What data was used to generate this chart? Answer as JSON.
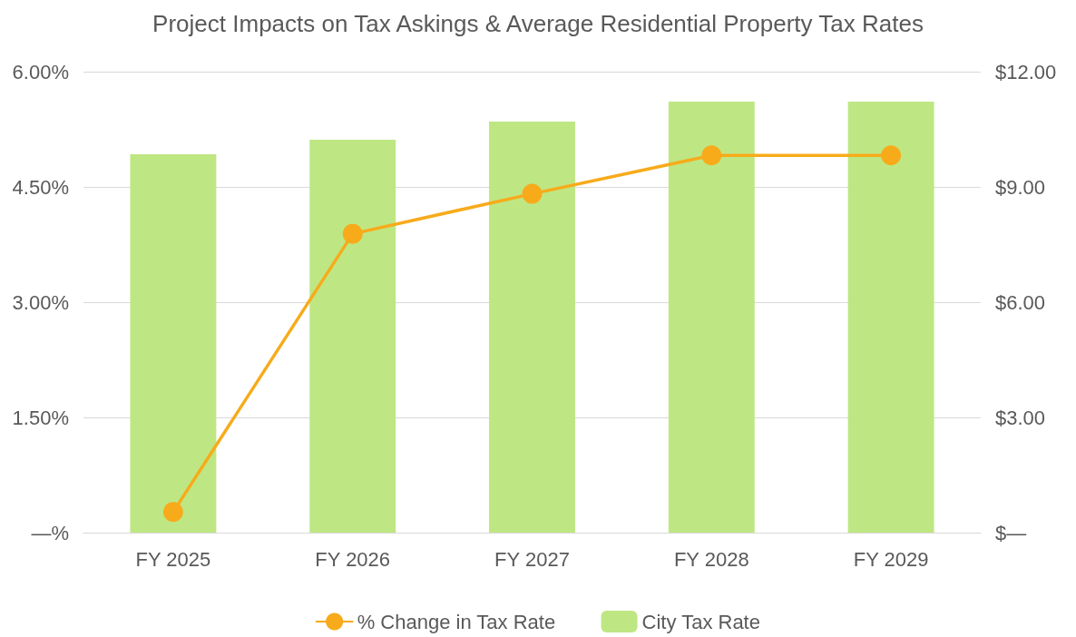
{
  "chart_data": {
    "type": "bar",
    "title": "Project Impacts on Tax Askings & Average Residential Property Tax Rates",
    "categories": [
      "FY 2025",
      "FY 2026",
      "FY 2027",
      "FY 2028",
      "FY 2029"
    ],
    "series": [
      {
        "name": "% Change in Tax Rate",
        "type": "line",
        "color": "#f7ab1b",
        "values": [
          0.27,
          3.89,
          4.41,
          4.91,
          4.91
        ]
      },
      {
        "name": "City Tax Rate",
        "axis": "y2",
        "color": "#bee784",
        "values": [
          9.85,
          10.23,
          10.7,
          11.22,
          11.22
        ]
      }
    ],
    "ylim": [
      0,
      6
    ],
    "yticks": [
      {
        "value": 0,
        "label": "—%"
      },
      {
        "value": 1.5,
        "label": "1.50%"
      },
      {
        "value": 3,
        "label": "3.00%"
      },
      {
        "value": 4.5,
        "label": "4.50%"
      },
      {
        "value": 6,
        "label": "6.00%"
      }
    ],
    "y2lim": [
      0,
      12
    ],
    "y2ticks": [
      {
        "value": 0,
        "label": "$—"
      },
      {
        "value": 3,
        "label": "$3.00"
      },
      {
        "value": 6,
        "label": "$6.00"
      },
      {
        "value": 9,
        "label": "$9.00"
      },
      {
        "value": 12,
        "label": "$12.00"
      }
    ],
    "grid": "y",
    "legend": "bottom",
    "marker": "circle",
    "line_style": "solid"
  }
}
